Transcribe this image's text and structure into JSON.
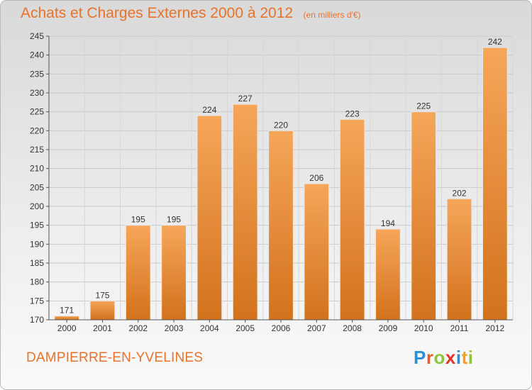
{
  "title": "Achats et Charges Externes 2000 à 2012",
  "subtitle": "(en milliers d'€)",
  "location": "DAMPIERRE-EN-YVELINES",
  "logo": {
    "letters": [
      "P",
      "r",
      "o",
      "x",
      "i",
      "t",
      "i"
    ],
    "colors": [
      "#2a8fd6",
      "#e85a2a",
      "#8cc63f",
      "#e8332a",
      "#2a8fd6",
      "#f4a21d",
      "#8cc63f"
    ]
  },
  "colors": {
    "bar_light": "#f6a65a",
    "bar_dark": "#d2721c",
    "title": "#e8722a"
  },
  "chart_data": {
    "type": "bar",
    "categories": [
      "2000",
      "2001",
      "2002",
      "2003",
      "2004",
      "2005",
      "2006",
      "2007",
      "2008",
      "2009",
      "2010",
      "2011",
      "2012"
    ],
    "values": [
      171,
      175,
      195,
      195,
      224,
      227,
      220,
      206,
      223,
      194,
      225,
      202,
      242
    ],
    "ylim": [
      170,
      245
    ],
    "yticks": [
      170,
      175,
      180,
      185,
      190,
      195,
      200,
      205,
      210,
      215,
      220,
      225,
      230,
      235,
      240,
      245
    ],
    "grid": true
  }
}
